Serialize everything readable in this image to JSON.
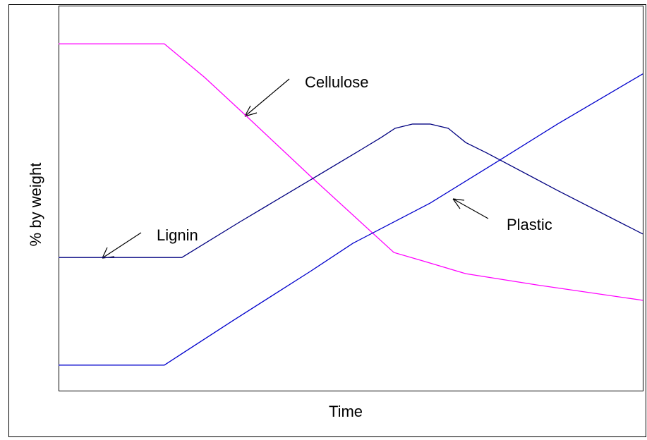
{
  "chart_data": {
    "type": "line",
    "x_label": "Time",
    "y_label": "% by weight",
    "xlim": [
      0,
      100
    ],
    "ylim": [
      0,
      100
    ],
    "series": [
      {
        "name": "Cellulose",
        "color": "#ff00ff",
        "x": [
          0,
          18.1,
          25,
          32.2,
          43.1,
          57.4,
          62.4,
          69.7,
          81.8,
          100
        ],
        "values": [
          90.1,
          90.1,
          81.4,
          71.3,
          55.8,
          36.0,
          33.8,
          30.5,
          27.6,
          23.6
        ]
      },
      {
        "name": "Lignin",
        "color": "#000080",
        "x": [
          0,
          21.1,
          31.0,
          43.1,
          51.6,
          55.2,
          57.6,
          60.6,
          63.6,
          66.7,
          69.7,
          73.3,
          85.4,
          100
        ],
        "values": [
          34.7,
          34.7,
          43.9,
          54.8,
          62.5,
          65.8,
          68.2,
          69.3,
          69.3,
          68.2,
          64.5,
          61.8,
          52.1,
          40.8
        ]
      },
      {
        "name": "Plastic",
        "color": "#0000cc",
        "x": [
          0,
          18.1,
          29.8,
          43.1,
          50.4,
          63.6,
          74.5,
          85.4,
          100
        ],
        "values": [
          6.8,
          6.8,
          18.3,
          31.1,
          38.4,
          48.8,
          59.0,
          69.3,
          82.3
        ]
      }
    ]
  }
}
